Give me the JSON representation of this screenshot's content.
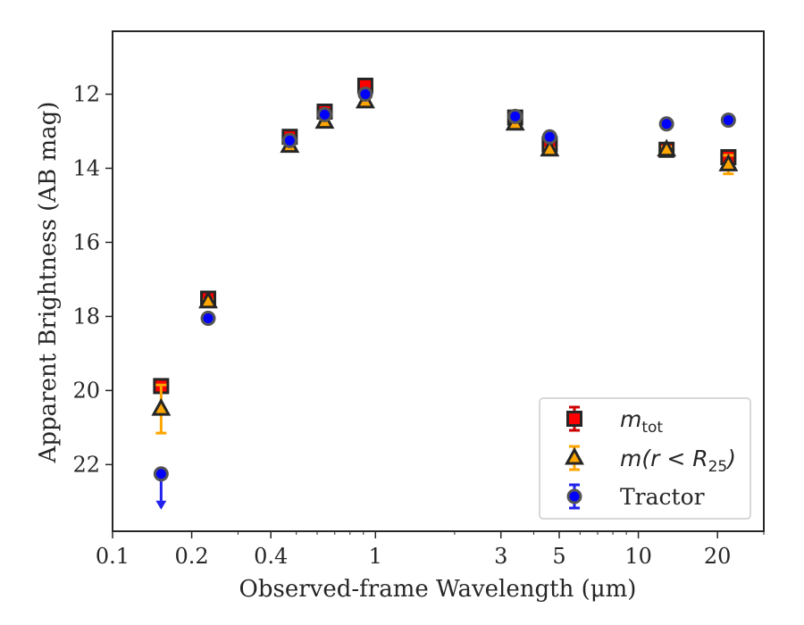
{
  "chart_data": {
    "type": "scatter",
    "title": "",
    "xlabel": "Observed-frame Wavelength (μm)",
    "ylabel": "Apparent Brightness (AB mag)",
    "x_scale": "log",
    "xlim": [
      0.1,
      30
    ],
    "ylim": [
      23.8,
      10.3
    ],
    "y_inverted": true,
    "grid": false,
    "legend_position": "lower-right",
    "x_ticks": [
      {
        "value": 0.1,
        "label": "0.1"
      },
      {
        "value": 0.2,
        "label": "0.2"
      },
      {
        "value": 0.4,
        "label": "0.4"
      },
      {
        "value": 1,
        "label": "1"
      },
      {
        "value": 3,
        "label": "3"
      },
      {
        "value": 5,
        "label": "5"
      },
      {
        "value": 10,
        "label": "10"
      },
      {
        "value": 20,
        "label": "20"
      }
    ],
    "y_ticks": [
      {
        "value": 12,
        "label": "12"
      },
      {
        "value": 14,
        "label": "14"
      },
      {
        "value": 16,
        "label": "16"
      },
      {
        "value": 18,
        "label": "18"
      },
      {
        "value": 20,
        "label": "20"
      },
      {
        "value": 22,
        "label": "22"
      }
    ],
    "series": [
      {
        "name": "m_tot",
        "marker": "square",
        "color": "#ff0000",
        "errcolor": "#cc0000",
        "points": [
          {
            "x": 0.153,
            "y": 19.88,
            "err": 0.1
          },
          {
            "x": 0.231,
            "y": 17.52,
            "err": 0.05
          },
          {
            "x": 0.472,
            "y": 13.15,
            "err": 0.05
          },
          {
            "x": 0.641,
            "y": 12.47,
            "err": 0.05
          },
          {
            "x": 0.915,
            "y": 11.77,
            "err": 0.05
          },
          {
            "x": 3.4,
            "y": 12.63,
            "err": 0.05
          },
          {
            "x": 4.6,
            "y": 13.35,
            "err": 0.05
          },
          {
            "x": 12.8,
            "y": 13.5,
            "err": 0.08
          },
          {
            "x": 22.0,
            "y": 13.7,
            "err": 0.12
          }
        ]
      },
      {
        "name": "m(r < R25)",
        "marker": "triangle",
        "color": "#ffa500",
        "errcolor": "#ffa500",
        "points": [
          {
            "x": 0.153,
            "y": 20.5,
            "err": 0.65
          },
          {
            "x": 0.231,
            "y": 17.6,
            "err": 0.05
          },
          {
            "x": 0.472,
            "y": 13.4,
            "err": 0.05
          },
          {
            "x": 0.641,
            "y": 12.75,
            "err": 0.05
          },
          {
            "x": 0.915,
            "y": 12.2,
            "err": 0.05
          },
          {
            "x": 3.4,
            "y": 12.8,
            "err": 0.05
          },
          {
            "x": 4.6,
            "y": 13.5,
            "err": 0.05
          },
          {
            "x": 12.8,
            "y": 13.5,
            "err": 0.08
          },
          {
            "x": 22.0,
            "y": 13.9,
            "err": 0.25
          }
        ]
      },
      {
        "name": "Tractor",
        "marker": "circle",
        "color": "#0000ff",
        "errcolor": "#2222ee",
        "points": [
          {
            "x": 0.153,
            "y": 22.25,
            "err": 0.0,
            "upper_limit": true
          },
          {
            "x": 0.231,
            "y": 18.05,
            "err": 0.03
          },
          {
            "x": 0.472,
            "y": 13.25,
            "err": 0.03
          },
          {
            "x": 0.641,
            "y": 12.55,
            "err": 0.03
          },
          {
            "x": 0.915,
            "y": 12.0,
            "err": 0.03
          },
          {
            "x": 3.4,
            "y": 12.6,
            "err": 0.03
          },
          {
            "x": 4.6,
            "y": 13.15,
            "err": 0.03
          },
          {
            "x": 12.8,
            "y": 12.8,
            "err": 0.03
          },
          {
            "x": 22.0,
            "y": 12.7,
            "err": 0.03
          }
        ]
      }
    ],
    "legend": [
      {
        "base": "m",
        "sub": "tot",
        "rest": ""
      },
      {
        "base": "m(r < R",
        "sub": "25",
        "rest": ")"
      },
      {
        "base": "Tractor",
        "sub": "",
        "rest": ""
      }
    ]
  }
}
